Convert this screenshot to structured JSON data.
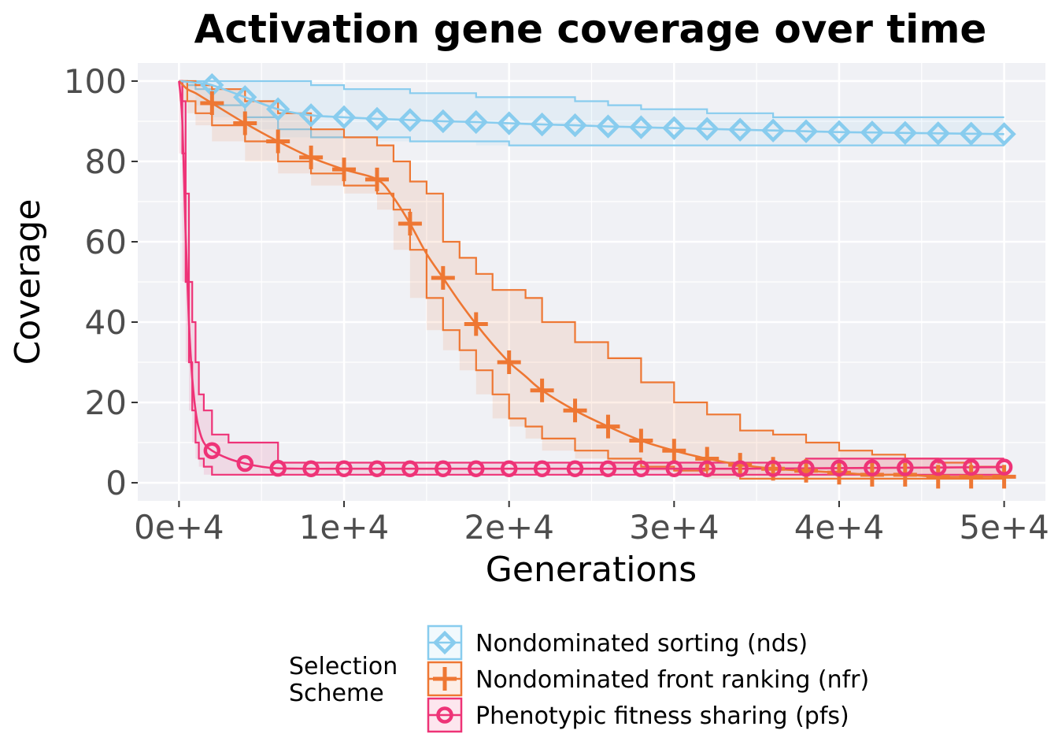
{
  "chart_data": {
    "type": "line",
    "title": "Activation gene coverage over time",
    "xlabel": "Generations",
    "ylabel": "Coverage",
    "xlim": [
      -2500,
      52500
    ],
    "ylim": [
      -4.5,
      104.5
    ],
    "x_ticks": [
      0,
      10000,
      20000,
      30000,
      40000,
      50000
    ],
    "x_tick_labels": [
      "0e+4",
      "1e+4",
      "2e+4",
      "3e+4",
      "4e+4",
      "5e+4"
    ],
    "y_ticks": [
      0,
      20,
      40,
      60,
      80,
      100
    ],
    "y_tick_labels": [
      "0",
      "20",
      "40",
      "60",
      "80",
      "100"
    ],
    "grid": true,
    "legend": {
      "title_lines": [
        "Selection",
        "Scheme"
      ],
      "position": "bottom"
    },
    "series": [
      {
        "name": "Nondominated sorting (nds)",
        "color": "#88cceeff",
        "marker": "diamond",
        "x": [
          0,
          500,
          1000,
          2000,
          4000,
          6000,
          8000,
          10000,
          12000,
          14000,
          16000,
          18000,
          20000,
          22000,
          24000,
          26000,
          28000,
          30000,
          32000,
          34000,
          36000,
          38000,
          40000,
          42000,
          44000,
          46000,
          48000,
          50000
        ],
        "y": [
          100,
          99.8,
          99.6,
          99,
          96,
          93,
          91.5,
          91,
          90.6,
          90.3,
          90,
          89.8,
          89.5,
          89.2,
          89,
          88.7,
          88.5,
          88.3,
          88.1,
          87.9,
          87.7,
          87.5,
          87.3,
          87.2,
          87.1,
          87,
          86.9,
          86.8
        ],
        "upper": [
          100,
          100,
          100,
          100,
          100,
          100,
          99,
          98,
          98,
          97,
          97,
          96,
          96,
          96,
          95,
          94,
          93,
          93,
          92,
          92,
          91,
          91,
          91,
          91,
          91,
          91,
          91,
          91
        ],
        "lower": [
          100,
          99,
          98,
          94,
          91,
          88,
          86,
          86,
          86,
          85,
          85,
          85,
          84,
          84,
          84,
          84,
          84,
          84,
          84,
          84,
          84,
          84,
          84,
          84,
          84,
          84,
          84,
          84
        ]
      },
      {
        "name": "Nondominated front ranking (nfr)",
        "color": "#ee7733ff",
        "marker": "plus",
        "x": [
          0,
          500,
          1000,
          2000,
          4000,
          6000,
          8000,
          10000,
          12000,
          13000,
          14000,
          15000,
          16000,
          17000,
          18000,
          19000,
          20000,
          21000,
          22000,
          24000,
          26000,
          28000,
          30000,
          32000,
          34000,
          36000,
          38000,
          40000,
          42000,
          44000,
          46000,
          48000,
          50000
        ],
        "y": [
          100,
          98,
          97,
          94.5,
          89.5,
          85,
          81,
          78,
          75.5,
          71,
          64.5,
          57,
          51,
          45,
          39.5,
          34.5,
          30,
          26.5,
          23,
          18,
          14,
          10.5,
          8,
          6,
          4.5,
          3.5,
          3,
          2.5,
          2,
          2,
          1.5,
          1.5,
          1.5
        ],
        "upper": [
          100,
          100,
          99,
          98,
          95,
          92,
          88,
          86,
          84,
          80,
          75,
          72,
          60,
          56,
          52,
          48,
          48,
          46,
          40,
          35,
          31,
          25,
          20,
          17,
          13,
          12,
          10,
          8,
          7,
          6,
          5,
          4,
          3
        ],
        "lower": [
          100,
          95,
          92,
          89,
          85,
          80,
          77,
          74,
          72,
          68,
          58,
          46,
          38,
          33,
          28,
          22,
          16,
          14,
          11,
          8,
          6,
          4,
          3,
          2,
          1,
          1,
          1,
          1,
          1,
          1,
          1,
          1,
          1
        ]
      },
      {
        "name": "Phenotypic fitness sharing (pfs)",
        "color": "#ee3377ff",
        "marker": "circle",
        "x": [
          0,
          200,
          400,
          600,
          800,
          1000,
          1200,
          1500,
          2000,
          3000,
          4000,
          5000,
          6000,
          8000,
          10000,
          14000,
          18000,
          22000,
          26000,
          30000,
          34000,
          38000,
          42000,
          46000,
          50000
        ],
        "y": [
          100,
          90,
          62,
          40,
          26,
          18,
          13.5,
          10,
          8,
          6,
          4.8,
          4,
          3.6,
          3.5,
          3.5,
          3.5,
          3.5,
          3.5,
          3.5,
          3.5,
          3.5,
          3.6,
          3.7,
          3.8,
          3.9
        ],
        "upper": [
          100,
          95,
          72,
          50,
          40,
          30,
          22,
          18,
          12,
          10,
          10,
          10,
          5,
          5,
          5,
          5,
          5,
          5,
          5,
          5,
          5,
          6,
          6,
          6,
          6
        ],
        "lower": [
          100,
          82,
          50,
          30,
          18,
          10,
          6,
          4,
          2,
          2,
          2,
          2,
          2,
          2,
          2,
          2,
          2,
          2,
          2,
          2,
          2,
          2,
          2,
          2,
          2
        ]
      }
    ],
    "marker_x": [
      2000,
      4000,
      6000,
      8000,
      10000,
      12000,
      14000,
      16000,
      18000,
      20000,
      22000,
      24000,
      26000,
      28000,
      30000,
      32000,
      34000,
      36000,
      38000,
      40000,
      42000,
      44000,
      46000,
      48000,
      50000
    ]
  }
}
